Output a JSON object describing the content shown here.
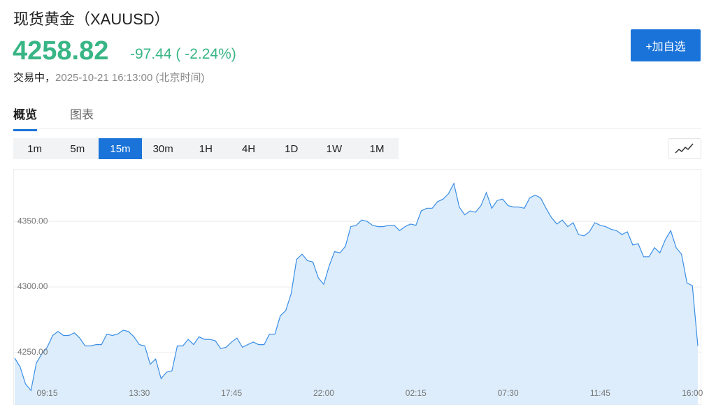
{
  "header": {
    "title": "现货黄金（XAUUSD）",
    "price": "4258.82",
    "change": "-97.44 ( -2.24%)",
    "status_label": "交易中，",
    "timestamp": "2025-10-21 16:13:00 (北京时间)",
    "button": "+加自选"
  },
  "tabs": {
    "items": [
      "概览",
      "图表"
    ],
    "active": 0
  },
  "intervals": {
    "items": [
      "1m",
      "5m",
      "15m",
      "30m",
      "1H",
      "4H",
      "1D",
      "1W",
      "1M"
    ],
    "active": 2
  },
  "chart_data": {
    "type": "area",
    "categories": [
      null,
      null,
      null,
      null,
      null,
      null,
      "09:15",
      null,
      null,
      null,
      null,
      null,
      null,
      null,
      null,
      null,
      null,
      null,
      null,
      null,
      null,
      null,
      null,
      "13:30",
      null,
      null,
      null,
      null,
      null,
      null,
      null,
      null,
      null,
      null,
      null,
      null,
      null,
      null,
      null,
      null,
      "17:45",
      null,
      null,
      null,
      null,
      null,
      null,
      null,
      null,
      null,
      null,
      null,
      null,
      null,
      null,
      null,
      null,
      "22:00",
      null,
      null,
      null,
      null,
      null,
      null,
      null,
      null,
      null,
      null,
      null,
      null,
      null,
      null,
      null,
      null,
      "02:15",
      null,
      null,
      null,
      null,
      null,
      null,
      null,
      null,
      null,
      null,
      null,
      null,
      null,
      null,
      null,
      null,
      "07:30",
      null,
      null,
      null,
      null,
      null,
      null,
      null,
      null,
      null,
      null,
      null,
      null,
      null,
      null,
      null,
      null,
      "11:45",
      null,
      null,
      null,
      null,
      null,
      null,
      null,
      null,
      null,
      null,
      null,
      null,
      null,
      null,
      null,
      null,
      "16:00",
      null
    ],
    "series": [
      {
        "color": "#3a8ee6",
        "fill": "#ddedfb",
        "values": [
          4245.7,
          4239,
          4226,
          4221,
          4242,
          4249,
          4254,
          4263,
          4266,
          4263,
          4263,
          4265,
          4261,
          4255,
          4255,
          4256,
          4256,
          4264,
          4263,
          4264,
          4267,
          4266,
          4262,
          4256,
          4255,
          4241,
          4245,
          4230,
          4235,
          4236,
          4255,
          4255,
          4260,
          4256,
          4262,
          4260,
          4260,
          4259,
          4253,
          4254,
          4258,
          4261,
          4254,
          4256,
          4258,
          4256,
          4256,
          4264,
          4264,
          4278,
          4282,
          4295,
          4321,
          4325,
          4320,
          4319,
          4307,
          4302,
          4316,
          4327,
          4326,
          4331,
          4346,
          4347,
          4351,
          4350,
          4347,
          4346,
          4346,
          4347,
          4347,
          4343,
          4346,
          4348,
          4347,
          4358,
          4360,
          4360,
          4365,
          4367,
          4371,
          4379,
          4361,
          4355,
          4358,
          4357,
          4362,
          4372,
          4360,
          4366,
          4367,
          4362,
          4361,
          4361,
          4360,
          4368,
          4370,
          4368,
          4360,
          4353,
          4348,
          4351,
          4346,
          4349,
          4340,
          4339,
          4342,
          4349,
          4347,
          4346,
          4344,
          4343,
          4340,
          4342,
          4332,
          4333,
          4323,
          4323,
          4330,
          4326,
          4336,
          4343,
          4330,
          4325,
          4303,
          4301,
          4255
        ]
      }
    ],
    "ylim": [
      4210,
      4390
    ],
    "yticks": [
      {
        "value": 4250,
        "label": "4250.00"
      },
      {
        "value": 4300,
        "label": "4300.00"
      },
      {
        "value": 4350,
        "label": "4350.00"
      }
    ],
    "grid": true
  }
}
